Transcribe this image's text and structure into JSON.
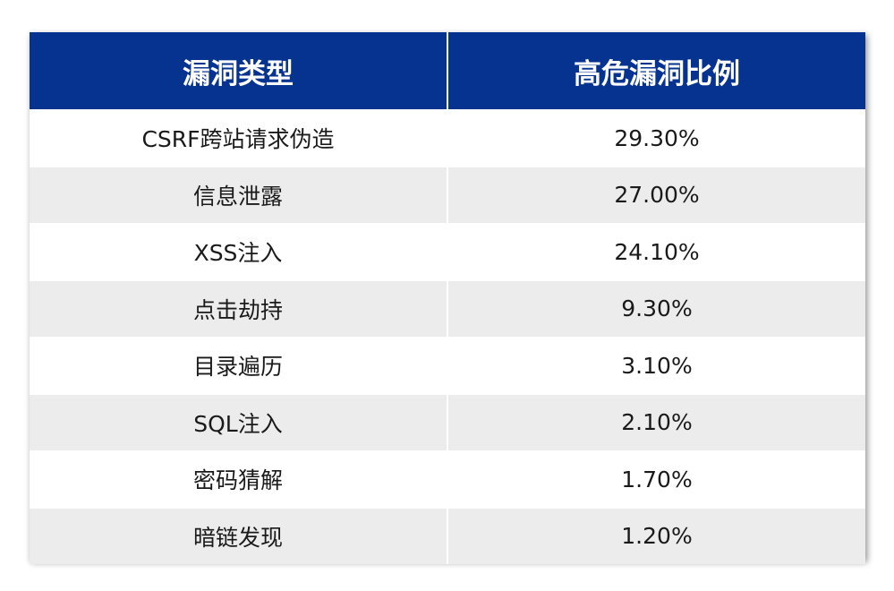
{
  "table": {
    "headers": [
      "漏洞类型",
      "高危漏洞比例"
    ],
    "rows": [
      {
        "type": "CSRF跨站请求伪造",
        "ratio": "29.30%"
      },
      {
        "type": "信息泄露",
        "ratio": "27.00%"
      },
      {
        "type": "XSS注入",
        "ratio": "24.10%"
      },
      {
        "type": "点击劫持",
        "ratio": "9.30%"
      },
      {
        "type": "目录遍历",
        "ratio": "3.10%"
      },
      {
        "type": "SQL注入",
        "ratio": "2.10%"
      },
      {
        "type": "密码猜解",
        "ratio": "1.70%"
      },
      {
        "type": "暗链发现",
        "ratio": "1.20%"
      }
    ]
  },
  "colors": {
    "header_bg": "#06338f",
    "header_text": "#ffffff",
    "row_alt_bg": "#ececec"
  }
}
